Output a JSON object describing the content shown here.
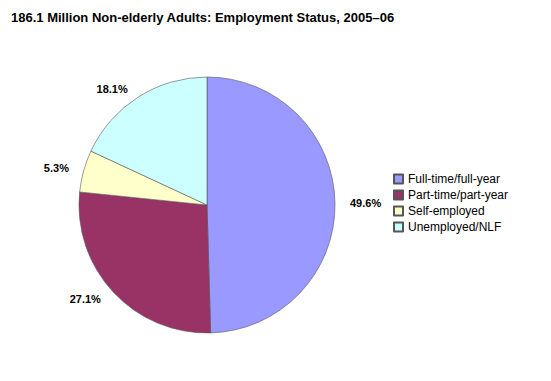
{
  "chart_data": {
    "type": "pie",
    "title": "186.1 Million Non-elderly Adults: Employment Status, 2005–06",
    "categories": [
      "Full-time/full-year",
      "Part-time/part-year",
      "Self-employed",
      "Unemployed/NLF"
    ],
    "values": [
      49.6,
      27.1,
      5.3,
      18.1
    ],
    "value_labels": [
      "49.6%",
      "27.1%",
      "5.3%",
      "18.1%"
    ],
    "colors": [
      "#9999ff",
      "#993366",
      "#ffffcc",
      "#ccffff"
    ],
    "data_labels": true,
    "legend": "right"
  }
}
